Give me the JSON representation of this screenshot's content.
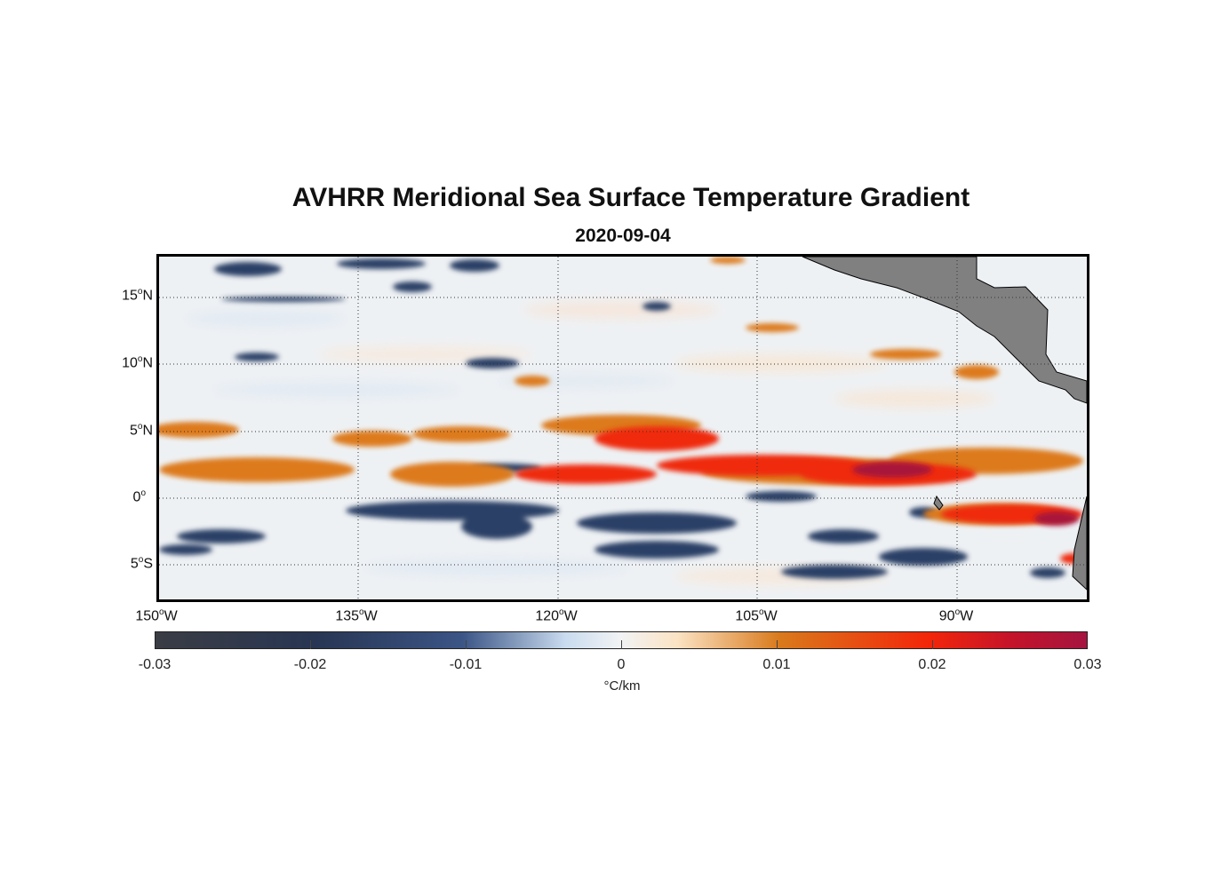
{
  "title": "AVHRR Meridional Sea Surface Temperature Gradient",
  "subtitle": "2020-09-04",
  "map": {
    "region": "Eastern Equatorial Pacific",
    "lon_range": [
      -150,
      -80
    ],
    "lat_range": [
      -8,
      18
    ],
    "grid": "dotted",
    "land_color": "#808080"
  },
  "lat_ticks": [
    {
      "num": "15",
      "hemi": "N"
    },
    {
      "num": "10",
      "hemi": "N"
    },
    {
      "num": "5",
      "hemi": "N"
    },
    {
      "num": "0",
      "hemi": ""
    },
    {
      "num": "5",
      "hemi": "S"
    }
  ],
  "lon_ticks": [
    {
      "num": "150",
      "hemi": "W"
    },
    {
      "num": "135",
      "hemi": "W"
    },
    {
      "num": "120",
      "hemi": "W"
    },
    {
      "num": "105",
      "hemi": "W"
    },
    {
      "num": "90",
      "hemi": "W"
    }
  ],
  "colorbar": {
    "ticks": [
      "-0.03",
      "-0.02",
      "-0.01",
      "0",
      "0.01",
      "0.02",
      "0.03"
    ],
    "unit": "°C/km",
    "range": [
      -0.03,
      0.03
    ]
  }
}
